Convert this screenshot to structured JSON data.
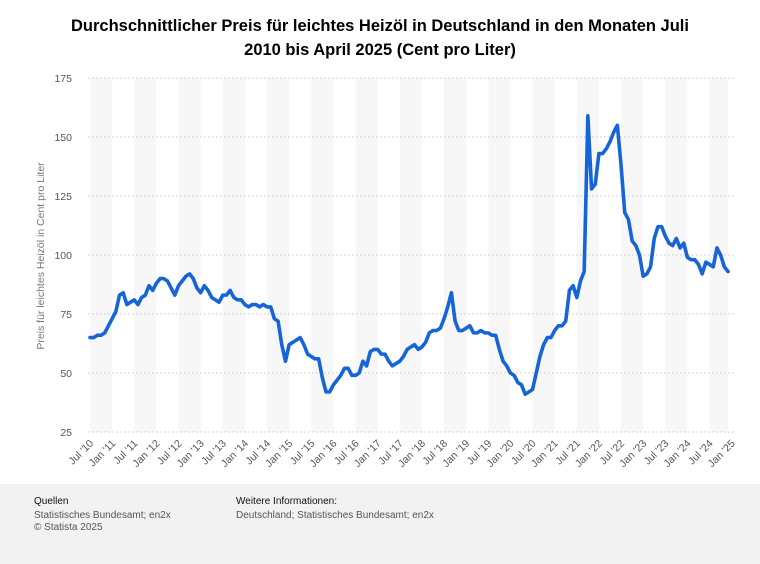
{
  "title_line1": "Durchschnittlicher Preis für leichtes Heizöl in Deutschland in den Monaten Juli",
  "title_line2": "2010 bis April 2025 (Cent pro Liter)",
  "footer": {
    "sources_heading": "Quellen",
    "sources_line1": "Statistisches Bundesamt; en2x",
    "sources_line2": "© Statista 2025",
    "info_heading": "Weitere Informationen:",
    "info_line1": "Deutschland; Statistisches Bundesamt; en2x"
  },
  "colors": {
    "line": "#1565d8",
    "grid": "#c8c8c8",
    "band": "#f7f7f7"
  },
  "chart_data": {
    "type": "line",
    "title": "Durchschnittlicher Preis für leichtes Heizöl in Deutschland in den Monaten Juli 2010 bis April 2025 (Cent pro Liter)",
    "xlabel": "",
    "ylabel": "Preis für leichtes Heizöl in Cent pro Liter",
    "ylim": [
      25,
      175
    ],
    "yticks": [
      175,
      150,
      125,
      100,
      75,
      50,
      25
    ],
    "grid": true,
    "xticks": [
      "Jul '10",
      "Jan '11",
      "Jul '11",
      "Jan '12",
      "Jul '12",
      "Jan '13",
      "Jul '13",
      "Jan '14",
      "Jul '14",
      "Jan '15",
      "Jul '15",
      "Jan '16",
      "Jul '16",
      "Jan '17",
      "Jul '17",
      "Jan '18",
      "Jul '18",
      "Jan '19",
      "Jul '19",
      "Jan '20",
      "Jul '20",
      "Jan '21",
      "Jul '21",
      "Jan '22",
      "Jul '22",
      "Jan '23",
      "Jul '23",
      "Jan '24",
      "Jul '24",
      "Jan '25"
    ],
    "x_start": "2010-07",
    "x_end": "2025-04",
    "series": [
      {
        "values": [
          65,
          65,
          66,
          66,
          67,
          70,
          73,
          76,
          83,
          84,
          79,
          80,
          81,
          79,
          82,
          83,
          87,
          85,
          88,
          90,
          90,
          89,
          86,
          83,
          87,
          89,
          91,
          92,
          90,
          86,
          84,
          87,
          85,
          82,
          81,
          80,
          83,
          83,
          85,
          82,
          81,
          81,
          79,
          78,
          79,
          79,
          78,
          79,
          78,
          78,
          73,
          72,
          62,
          55,
          62,
          63,
          64,
          65,
          62,
          58,
          57,
          56,
          56,
          48,
          42,
          42,
          45,
          47,
          49,
          52,
          52,
          49,
          49,
          50,
          55,
          53,
          59,
          60,
          60,
          58,
          58,
          55,
          53,
          54,
          55,
          57,
          60,
          61,
          62,
          60,
          61,
          63,
          67,
          68,
          68,
          69,
          73,
          78,
          84,
          72,
          68,
          68,
          69,
          70,
          67,
          67,
          68,
          67,
          67,
          66,
          66,
          60,
          55,
          53,
          50,
          49,
          46,
          45,
          41,
          42,
          43,
          50,
          57,
          62,
          65,
          65,
          68,
          70,
          70,
          72,
          85,
          87,
          82,
          89,
          93,
          159,
          128,
          130,
          143,
          143,
          145,
          148,
          152,
          155,
          138,
          118,
          115,
          106,
          104,
          100,
          91,
          92,
          95,
          107,
          112,
          112,
          108,
          105,
          104,
          107,
          103,
          105,
          99,
          98,
          98,
          96,
          92,
          97,
          96,
          95,
          103,
          100,
          95,
          93
        ]
      }
    ]
  }
}
